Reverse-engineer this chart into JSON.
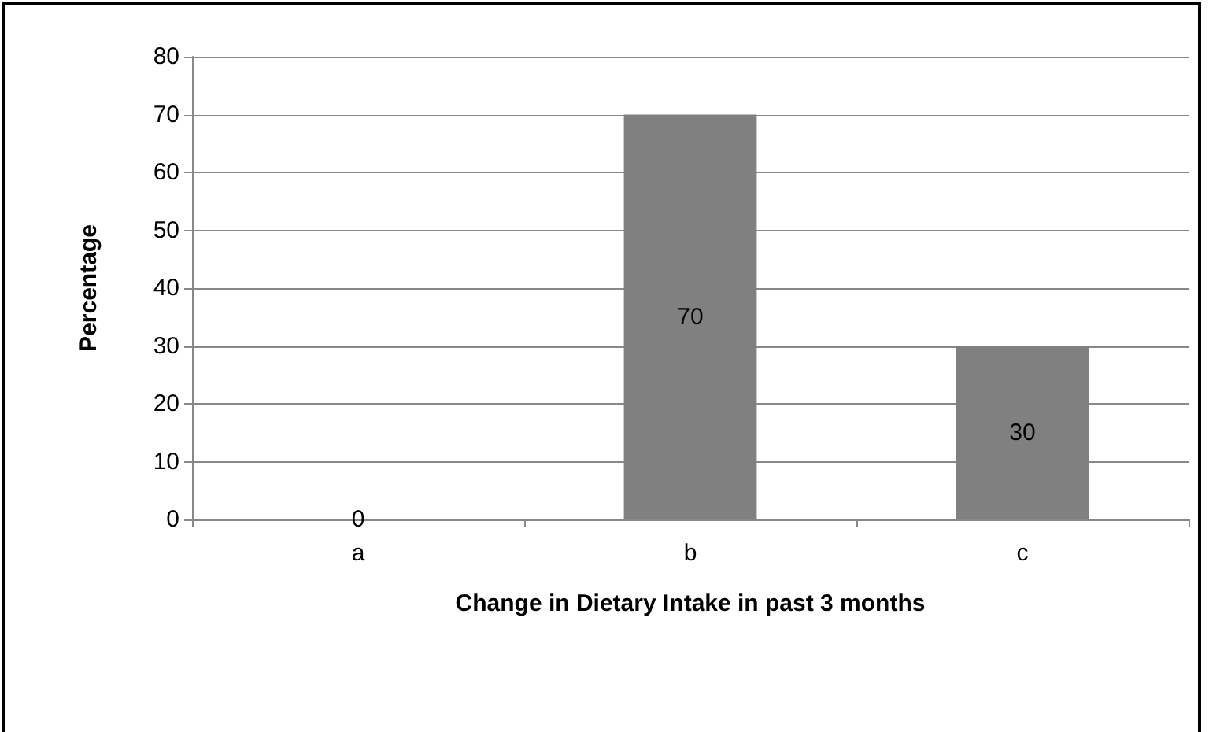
{
  "chart_data": {
    "type": "bar",
    "xlabel": "Change in Dietary Intake in past 3 months",
    "ylabel": "Percentage",
    "categories": [
      "a",
      "b",
      "c"
    ],
    "values": [
      0,
      70,
      30
    ],
    "color": "#808080",
    "ylim": [
      0,
      80
    ],
    "yticks": [
      0,
      10,
      20,
      30,
      40,
      50,
      60,
      70,
      80
    ],
    "grid": "y",
    "data_labels": true
  }
}
